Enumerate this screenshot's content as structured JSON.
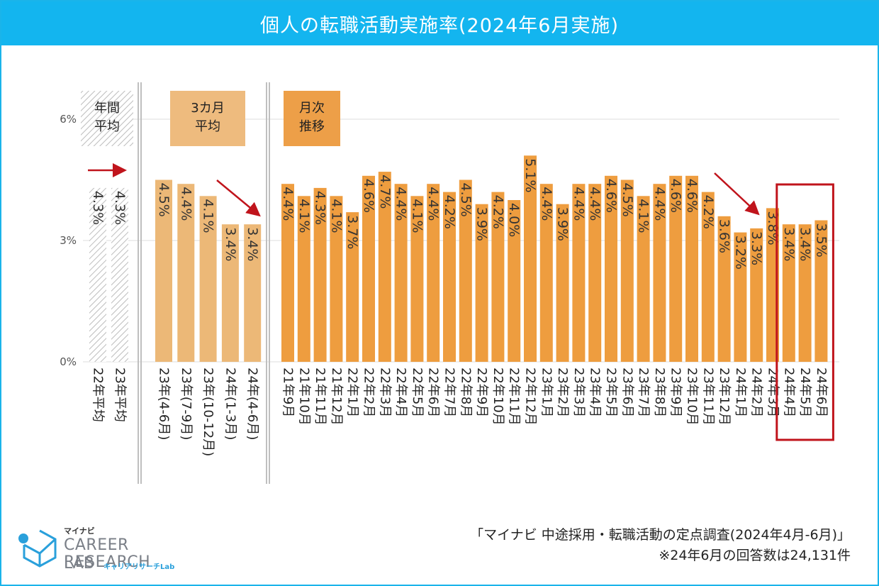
{
  "title": "個人の転職活動実施率(2024年6月実施)",
  "chart_data": {
    "type": "bar",
    "title": "個人の転職活動実施率(2024年6月実施)",
    "ylabel": "",
    "xlabel": "",
    "ylim": [
      0,
      6
    ],
    "yticks": [
      "0%",
      "3%",
      "6%"
    ],
    "value_unit": "%",
    "groups": [
      {
        "name": "年間平均",
        "label_lines": [
          "年間",
          "平均"
        ],
        "style": "hatched",
        "categories": [
          "22年平均",
          "23年平均"
        ],
        "values": [
          4.3,
          4.3
        ]
      },
      {
        "name": "3カ月平均",
        "label_lines": [
          "3カ月",
          "平均"
        ],
        "style": "light",
        "categories": [
          "23年(4-6月)",
          "23年(7-9月)",
          "23年(10-12月)",
          "24年(1-3月)",
          "24年(4-6月)"
        ],
        "values": [
          4.5,
          4.4,
          4.1,
          3.4,
          3.4
        ]
      },
      {
        "name": "月次推移",
        "label_lines": [
          "月次",
          "推移"
        ],
        "style": "solid",
        "categories": [
          "21年9月",
          "21年10月",
          "21年11月",
          "21年12月",
          "22年1月",
          "22年2月",
          "22年3月",
          "22年4月",
          "22年5月",
          "22年6月",
          "22年7月",
          "22年8月",
          "22年9月",
          "22年10月",
          "22年11月",
          "22年12月",
          "23年1月",
          "23年2月",
          "23年3月",
          "23年4月",
          "23年5月",
          "23年6月",
          "23年7月",
          "23年8月",
          "23年9月",
          "23年10月",
          "23年11月",
          "23年12月",
          "24年1月",
          "24年2月",
          "24年3月",
          "24年4月",
          "24年5月",
          "24年6月"
        ],
        "values": [
          4.4,
          4.1,
          4.3,
          4.1,
          3.7,
          4.6,
          4.7,
          4.4,
          4.1,
          4.4,
          4.2,
          4.5,
          3.9,
          4.2,
          4.0,
          5.1,
          4.4,
          3.9,
          4.4,
          4.4,
          4.6,
          4.5,
          4.1,
          4.4,
          4.6,
          4.6,
          4.2,
          3.6,
          3.2,
          3.3,
          3.8,
          3.4,
          3.4,
          3.5
        ],
        "highlighted": [
          "24年4月",
          "24年5月",
          "24年6月"
        ]
      }
    ]
  },
  "colors": {
    "title_bg": "#13b5ef",
    "bar_light": "#ecb877",
    "bar_solid": "#ee9d3f",
    "label_box_light": "#eebb7e",
    "label_box_solid": "#ed9f48",
    "arrow": "#c0141c",
    "highlight_box": "#c0141c"
  },
  "logo": {
    "brand": "マイナビ",
    "main": "CAREER RESEARCH",
    "lab": "LAB",
    "sub": "キャリアリサーチLab"
  },
  "source": {
    "line1": "「マイナビ 中途採用・転職活動の定点調査(2024年4月-6月)」",
    "line2": "※24年6月の回答数は24,131件"
  }
}
